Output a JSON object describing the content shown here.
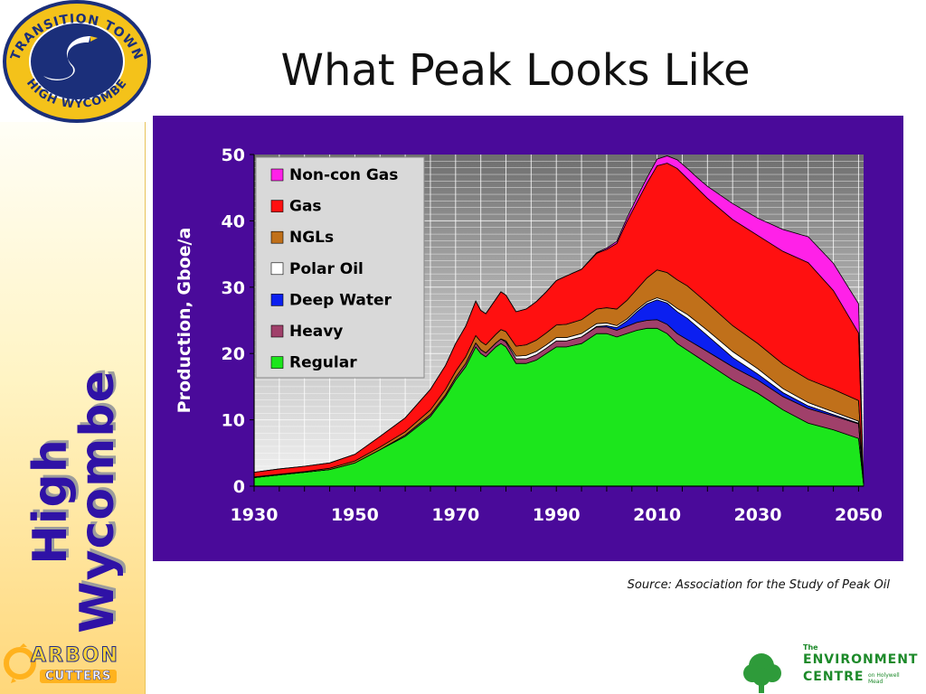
{
  "slide": {
    "title": "What Peak Looks Like",
    "source": "Source: Association for the Study of Peak Oil",
    "side_title_line1": "High",
    "side_title_line2": "Wycombe"
  },
  "logos": {
    "transition_town_top": "TRANSITION TOWN",
    "transition_town_bottom": "HIGH WYCOMBE",
    "carbon_line1": "ARBON",
    "carbon_line2": "CUTTERS",
    "env_the": "The",
    "env_line1": "ENVIRONMENT",
    "env_line2": "CENTRE",
    "env_small": "on Holywell Mead"
  },
  "colors": {
    "panel": "#4a0a9a",
    "title_side": "#2f12a6"
  },
  "chart_data": {
    "type": "area",
    "stacked": true,
    "ylabel": "Production, Gboe/a",
    "xlabel": "",
    "ylim": [
      0,
      50
    ],
    "xlim": [
      1930,
      2051
    ],
    "x_ticks": [
      1930,
      1950,
      1970,
      1990,
      2010,
      2030,
      2050
    ],
    "y_ticks": [
      0,
      10,
      20,
      30,
      40,
      50
    ],
    "grid": true,
    "legend_position": "top-left",
    "x": [
      1930,
      1935,
      1940,
      1945,
      1950,
      1955,
      1960,
      1965,
      1968,
      1970,
      1972,
      1974,
      1975,
      1976,
      1978,
      1979,
      1980,
      1982,
      1984,
      1986,
      1988,
      1990,
      1992,
      1995,
      1998,
      2000,
      2002,
      2004,
      2006,
      2008,
      2010,
      2012,
      2014,
      2016,
      2018,
      2020,
      2025,
      2030,
      2035,
      2040,
      2045,
      2050,
      2051
    ],
    "series": [
      {
        "name": "Regular",
        "color": "#1ce61c",
        "values": [
          1.3,
          1.7,
          2.1,
          2.5,
          3.5,
          5.5,
          7.5,
          10.5,
          13.5,
          16,
          18,
          21,
          20,
          19.5,
          21,
          21.5,
          21,
          18.5,
          18.5,
          19,
          20,
          21,
          21,
          21.5,
          23,
          23,
          22.5,
          23,
          23.5,
          23.8,
          23.8,
          23,
          21.5,
          20.5,
          19.5,
          18.5,
          16,
          14,
          11.5,
          9.5,
          8.5,
          7.2,
          0.3
        ]
      },
      {
        "name": "Heavy",
        "color": "#a0406a",
        "values": [
          0,
          0,
          0,
          0,
          0,
          0,
          0.2,
          0.3,
          0.3,
          0.4,
          0.5,
          0.6,
          0.6,
          0.6,
          0.6,
          0.7,
          0.7,
          0.7,
          0.7,
          0.8,
          0.8,
          0.9,
          0.9,
          1,
          1,
          1,
          1,
          1.1,
          1.2,
          1.2,
          1.3,
          1.4,
          1.5,
          1.6,
          1.7,
          1.8,
          2,
          2,
          2,
          2.2,
          2.1,
          2.2,
          0
        ]
      },
      {
        "name": "Deep Water",
        "color": "#0b1ff0",
        "values": [
          0,
          0,
          0,
          0,
          0,
          0,
          0,
          0,
          0,
          0,
          0,
          0,
          0,
          0,
          0,
          0,
          0,
          0,
          0,
          0,
          0,
          0,
          0,
          0,
          0.1,
          0.2,
          0.4,
          0.8,
          1.6,
          2.5,
          3,
          3.2,
          3.3,
          3.2,
          2.8,
          2.4,
          1.4,
          0.9,
          0.6,
          0.4,
          0.2,
          0.1,
          0
        ]
      },
      {
        "name": "Polar Oil",
        "color": "#ffffff",
        "values": [
          0,
          0,
          0,
          0,
          0,
          0,
          0,
          0,
          0,
          0,
          0,
          0,
          0,
          0,
          0,
          0,
          0.2,
          0.4,
          0.5,
          0.5,
          0.5,
          0.5,
          0.5,
          0.5,
          0.4,
          0.4,
          0.3,
          0.3,
          0.3,
          0.3,
          0.3,
          0.3,
          0.5,
          0.6,
          0.7,
          0.8,
          0.9,
          0.8,
          0.6,
          0.5,
          0.4,
          0.3,
          0
        ]
      },
      {
        "name": "NGLs",
        "color": "#c0701a",
        "values": [
          0.1,
          0.1,
          0.1,
          0.2,
          0.3,
          0.4,
          0.5,
          0.7,
          0.8,
          0.9,
          1,
          1.1,
          1.2,
          1.2,
          1.3,
          1.4,
          1.4,
          1.5,
          1.6,
          1.7,
          1.8,
          1.9,
          2,
          2.1,
          2.2,
          2.3,
          2.5,
          2.8,
          3.1,
          3.6,
          4.2,
          4.3,
          4.3,
          4.3,
          4.2,
          4.1,
          3.9,
          3.8,
          3.7,
          3.5,
          3.4,
          3.1,
          0
        ]
      },
      {
        "name": "Gas",
        "color": "#ff1010",
        "values": [
          0.7,
          0.8,
          0.8,
          0.8,
          1,
          1.6,
          2.1,
          3.1,
          3.6,
          4.2,
          4.6,
          5.2,
          4.7,
          4.7,
          5.3,
          5.7,
          5.5,
          5.2,
          5.4,
          5.8,
          6.2,
          6.7,
          7.3,
          7.6,
          8.4,
          8.8,
          9.9,
          11.9,
          13.1,
          14.3,
          15.7,
          16.5,
          16.8,
          16.2,
          16,
          15.8,
          16,
          16.3,
          17,
          17.6,
          14.9,
          10.2,
          0
        ]
      },
      {
        "name": "Non-con Gas",
        "color": "#ff21e8",
        "values": [
          0,
          0,
          0,
          0,
          0,
          0,
          0,
          0,
          0,
          0,
          0,
          0,
          0,
          0,
          0,
          0,
          0,
          0,
          0,
          0,
          0,
          0,
          0,
          0,
          0.1,
          0.2,
          0.3,
          0.5,
          0.7,
          0.8,
          1,
          1.1,
          1.3,
          1.5,
          1.6,
          1.8,
          2.4,
          2.6,
          3.3,
          3.9,
          4.1,
          4.4,
          0
        ]
      }
    ]
  }
}
